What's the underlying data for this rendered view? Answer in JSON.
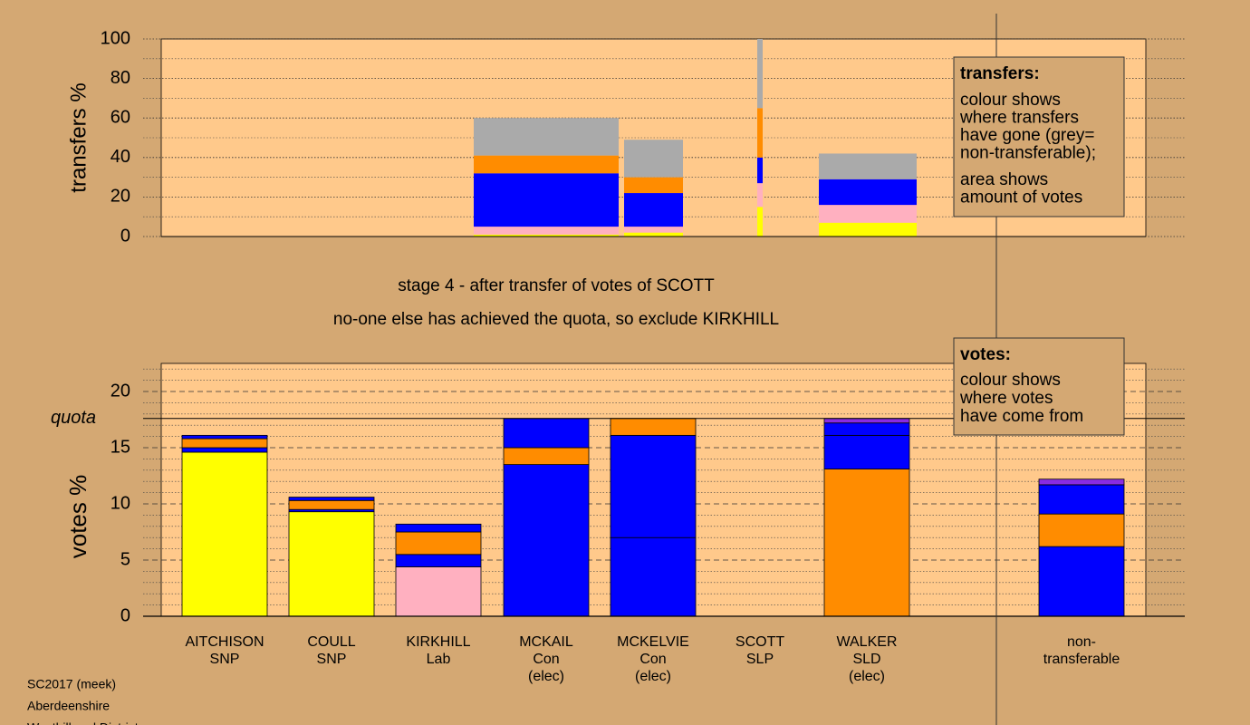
{
  "chart_data": [
    {
      "type": "bar",
      "ylabel": "transfers %",
      "ylim": [
        0,
        100
      ],
      "yticks": [
        0,
        20,
        40,
        60,
        80,
        100
      ],
      "minor_yticks": [
        10,
        30,
        50,
        70,
        90
      ],
      "grid": true,
      "categories": [
        null,
        null,
        null,
        null
      ],
      "series": [
        {
          "color": "#ffff00",
          "values": [
            1,
            2,
            15,
            7
          ]
        },
        {
          "color": "#ffb0c0",
          "values": [
            4,
            3,
            12,
            9
          ]
        },
        {
          "color": "#0000ff",
          "values": [
            27,
            17,
            13,
            13
          ]
        },
        {
          "color": "#ff8c00",
          "values": [
            9,
            8,
            25,
            0
          ]
        },
        {
          "color": "#aaaaaa",
          "values": [
            19,
            19,
            35,
            13
          ]
        }
      ],
      "legend": {
        "title": "transfers:",
        "lines": [
          "colour shows",
          "where transfers",
          "have gone (grey=",
          "non-transferable);"
        ],
        "lines2": [
          "area shows",
          "amount of votes"
        ]
      }
    },
    {
      "type": "stacked-bar",
      "ylabel": "votes %",
      "subtitle": "stage 4 - after transfer of votes of SCOTT",
      "subtitle2": "no-one else has achieved the quota, so exclude KIRKHILL",
      "ylim": [
        0,
        22.5
      ],
      "yticks": [
        0,
        5,
        10,
        15,
        20
      ],
      "minor_yticks": [
        1,
        2,
        3,
        4,
        6,
        7,
        8,
        9,
        11,
        12,
        13,
        14,
        16,
        17,
        18,
        19,
        21,
        22
      ],
      "grid": true,
      "quota": {
        "label": "quota",
        "value": 17.6
      },
      "bars": [
        {
          "label": [
            "AITCHISON",
            "SNP"
          ],
          "segments": [
            {
              "color": "#ffff00",
              "value": 14.6
            },
            {
              "color": "#0000ff",
              "value": 0.4
            },
            {
              "color": "#ff8c00",
              "value": 0.8
            },
            {
              "color": "#0000ff",
              "value": 0.3
            }
          ]
        },
        {
          "label": [
            "COULL",
            "SNP"
          ],
          "segments": [
            {
              "color": "#ffff00",
              "value": 9.3
            },
            {
              "color": "#0000ff",
              "value": 0.2
            },
            {
              "color": "#ff8c00",
              "value": 0.8
            },
            {
              "color": "#0000ff",
              "value": 0.3
            }
          ]
        },
        {
          "label": [
            "KIRKHILL",
            "Lab"
          ],
          "segments": [
            {
              "color": "#ffb0c0",
              "value": 4.4
            },
            {
              "color": "#0000ff",
              "value": 1.1
            },
            {
              "color": "#ff8c00",
              "value": 2.0
            },
            {
              "color": "#0000ff",
              "value": 0.7
            }
          ]
        },
        {
          "label": [
            "MCKAIL",
            "Con",
            "(elec)"
          ],
          "segments": [
            {
              "color": "#0000ff",
              "value": 13.5
            },
            {
              "color": "#ff8c00",
              "value": 1.5
            },
            {
              "color": "#0000ff",
              "value": 2.6
            }
          ]
        },
        {
          "label": [
            "MCKELVIE",
            "Con",
            "(elec)"
          ],
          "segments": [
            {
              "color": "#0000ff",
              "value": 7.0
            },
            {
              "color": "#0000ff",
              "value": 9.1
            },
            {
              "color": "#ff8c00",
              "value": 1.5
            }
          ]
        },
        {
          "label": [
            "SCOTT",
            "SLP"
          ],
          "segments": [
            {
              "color": "#0000ff",
              "value": 0
            }
          ]
        },
        {
          "label": [
            "WALKER",
            "SLD",
            "(elec)"
          ],
          "segments": [
            {
              "color": "#ff8c00",
              "value": 13.1
            },
            {
              "color": "#0000ff",
              "value": 3.0
            },
            {
              "color": "#0000ff",
              "value": 1.1
            },
            {
              "color": "#8a2be2",
              "value": 0.4
            }
          ]
        },
        {
          "label": [
            "non-",
            "transferable"
          ],
          "segments": [
            {
              "color": "#0000ff",
              "value": 6.2
            },
            {
              "color": "#ff8c00",
              "value": 2.9
            },
            {
              "color": "#0000ff",
              "value": 2.6
            },
            {
              "color": "#8a2be2",
              "value": 0.5
            }
          ]
        }
      ],
      "legend": {
        "title": "votes:",
        "lines": [
          "colour shows",
          "where votes",
          "have come from"
        ]
      },
      "footer": [
        "SC2017 (meek)",
        "Aberdeenshire",
        "Westhill and District"
      ]
    }
  ]
}
